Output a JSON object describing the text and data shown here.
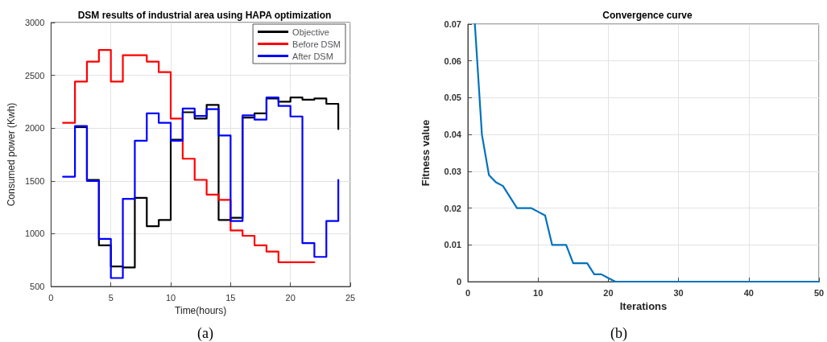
{
  "chart_data": [
    {
      "type": "step",
      "title": "DSM results of industrial area using HAPA optimization",
      "xlabel": "Time(hours)",
      "ylabel": "Consumed power (Kwh)",
      "annotations": [
        "(a)"
      ],
      "xlim": [
        0,
        25
      ],
      "xticks": [
        0,
        5,
        10,
        15,
        20,
        25
      ],
      "ylim": [
        500,
        3000
      ],
      "yticks": [
        500,
        1000,
        1500,
        2000,
        2500,
        3000
      ],
      "grid": true,
      "legend": "top right",
      "marker": "none",
      "line_style": "solid",
      "series": [
        {
          "name": "Objective",
          "color": "#000000",
          "x": [
            2,
            3,
            4,
            5,
            6,
            7,
            8,
            9,
            10,
            11,
            12,
            13,
            14,
            15,
            16,
            17,
            18,
            19,
            20,
            21,
            22,
            23,
            24
          ],
          "values": [
            2010,
            1510,
            890,
            690,
            680,
            1340,
            1070,
            1130,
            1890,
            2150,
            2090,
            2220,
            1130,
            1150,
            2100,
            2140,
            2280,
            2250,
            2290,
            2270,
            2280,
            2230,
            1990
          ]
        },
        {
          "name": "Before DSM",
          "color": "#ff0000",
          "x": [
            1,
            2,
            3,
            4,
            5,
            6,
            7,
            8,
            9,
            10,
            11,
            12,
            13,
            14,
            15,
            16,
            17,
            18,
            19,
            20,
            21,
            22
          ],
          "values": [
            2050,
            2440,
            2630,
            2740,
            2440,
            2690,
            2690,
            2630,
            2530,
            2090,
            1710,
            1510,
            1370,
            1320,
            1030,
            980,
            890,
            830,
            730,
            730,
            730,
            730
          ]
        },
        {
          "name": "After DSM",
          "color": "#0000ff",
          "x": [
            1,
            2,
            3,
            4,
            5,
            6,
            7,
            8,
            9,
            10,
            11,
            12,
            13,
            14,
            15,
            16,
            17,
            18,
            19,
            20,
            21,
            22,
            23,
            24
          ],
          "values": [
            1540,
            2020,
            1500,
            950,
            580,
            1330,
            1880,
            2140,
            2050,
            1880,
            2185,
            2115,
            2180,
            1930,
            1120,
            2120,
            2080,
            2290,
            2210,
            2110,
            910,
            780,
            1120,
            1510
          ]
        }
      ]
    },
    {
      "type": "line",
      "title": "Convergence curve",
      "xlabel": "Iterations",
      "ylabel": "Fitness value",
      "annotations": [
        "(b)"
      ],
      "xlim": [
        0,
        50
      ],
      "xticks": [
        0,
        10,
        20,
        30,
        40,
        50
      ],
      "ylim": [
        0,
        0.07
      ],
      "yticks": [
        0,
        0.01,
        0.02,
        0.03,
        0.04,
        0.05,
        0.06,
        0.07
      ],
      "grid": true,
      "marker": "none",
      "line_style": "solid",
      "series": [
        {
          "color": "#0072bd",
          "x": [
            1,
            2,
            3,
            4,
            5,
            6,
            7,
            8,
            9,
            10,
            11,
            12,
            13,
            14,
            15,
            16,
            17,
            18,
            19,
            20,
            21,
            22,
            23,
            24,
            25,
            26,
            27,
            28,
            29,
            30,
            31,
            32,
            33,
            34,
            35,
            36,
            37,
            38,
            39,
            40,
            41,
            42,
            43,
            44,
            45,
            46,
            47,
            48,
            49,
            50
          ],
          "values": [
            0.07,
            0.04,
            0.029,
            0.027,
            0.026,
            0.023,
            0.02,
            0.02,
            0.02,
            0.019,
            0.018,
            0.01,
            0.01,
            0.01,
            0.005,
            0.005,
            0.005,
            0.002,
            0.002,
            0.001,
            0,
            0,
            0,
            0,
            0,
            0,
            0,
            0,
            0,
            0,
            0,
            0,
            0,
            0,
            0,
            0,
            0,
            0,
            0,
            0,
            0,
            0,
            0,
            0,
            0,
            0,
            0,
            0,
            0,
            0
          ]
        }
      ]
    }
  ]
}
